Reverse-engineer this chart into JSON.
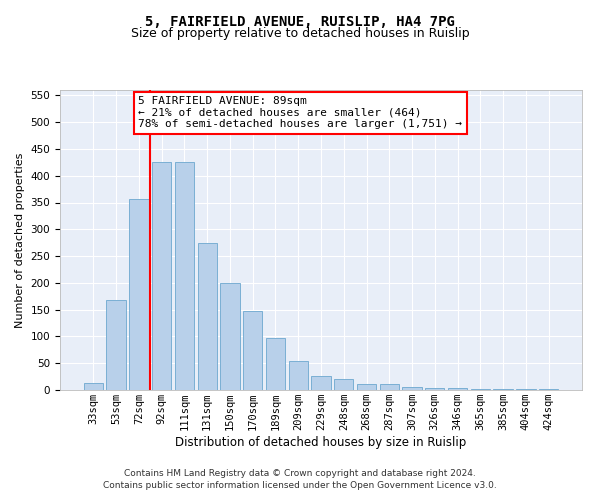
{
  "title1": "5, FAIRFIELD AVENUE, RUISLIP, HA4 7PG",
  "title2": "Size of property relative to detached houses in Ruislip",
  "xlabel": "Distribution of detached houses by size in Ruislip",
  "ylabel": "Number of detached properties",
  "categories": [
    "33sqm",
    "53sqm",
    "72sqm",
    "92sqm",
    "111sqm",
    "131sqm",
    "150sqm",
    "170sqm",
    "189sqm",
    "209sqm",
    "229sqm",
    "248sqm",
    "268sqm",
    "287sqm",
    "307sqm",
    "326sqm",
    "346sqm",
    "365sqm",
    "385sqm",
    "404sqm",
    "424sqm"
  ],
  "values": [
    13,
    168,
    357,
    425,
    425,
    275,
    200,
    148,
    97,
    55,
    27,
    20,
    11,
    11,
    6,
    4,
    4,
    2,
    2,
    1,
    1
  ],
  "bar_color": "#b8d0ea",
  "bar_edge_color": "#7aafd4",
  "property_line_x": 2.5,
  "annotation_text": "5 FAIRFIELD AVENUE: 89sqm\n← 21% of detached houses are smaller (464)\n78% of semi-detached houses are larger (1,751) →",
  "annotation_box_color": "white",
  "annotation_box_edge": "red",
  "ylim": [
    0,
    560
  ],
  "yticks": [
    0,
    50,
    100,
    150,
    200,
    250,
    300,
    350,
    400,
    450,
    500,
    550
  ],
  "footnote": "Contains HM Land Registry data © Crown copyright and database right 2024.\nContains public sector information licensed under the Open Government Licence v3.0.",
  "bg_color": "#e8eef8",
  "grid_color": "#ffffff",
  "title1_fontsize": 10,
  "title2_fontsize": 9,
  "xlabel_fontsize": 8.5,
  "ylabel_fontsize": 8,
  "tick_fontsize": 7.5,
  "annotation_fontsize": 8,
  "footnote_fontsize": 6.5
}
